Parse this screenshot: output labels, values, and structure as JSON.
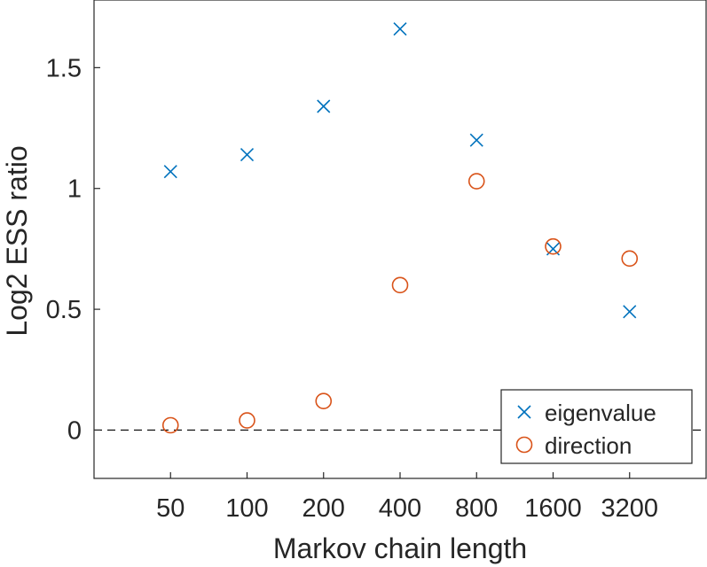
{
  "chart_data": {
    "type": "scatter",
    "title": "",
    "xlabel": "Markov chain length",
    "ylabel": "Log2 ESS ratio",
    "categories": [
      "50",
      "100",
      "200",
      "400",
      "800",
      "1600",
      "3200"
    ],
    "x_slots": [
      1,
      2,
      3,
      4,
      5,
      6,
      7
    ],
    "xlim": [
      0,
      8
    ],
    "ylim": [
      -0.2,
      1.78
    ],
    "yticks": [
      0,
      0.5,
      1,
      1.5
    ],
    "ytick_labels": [
      "0",
      "0.5",
      "1",
      "1.5"
    ],
    "grid": false,
    "reference_line": {
      "y": 0,
      "style": "dashed"
    },
    "legend": {
      "position": "bottom-right"
    },
    "series": [
      {
        "name": "eigenvalue",
        "marker": "x",
        "color": "#0072BD",
        "values": [
          1.07,
          1.14,
          1.34,
          1.66,
          1.2,
          0.75,
          0.49
        ]
      },
      {
        "name": "direction",
        "marker": "o",
        "color": "#D95319",
        "values": [
          0.02,
          0.04,
          0.12,
          0.6,
          1.03,
          0.76,
          0.71
        ]
      }
    ]
  }
}
